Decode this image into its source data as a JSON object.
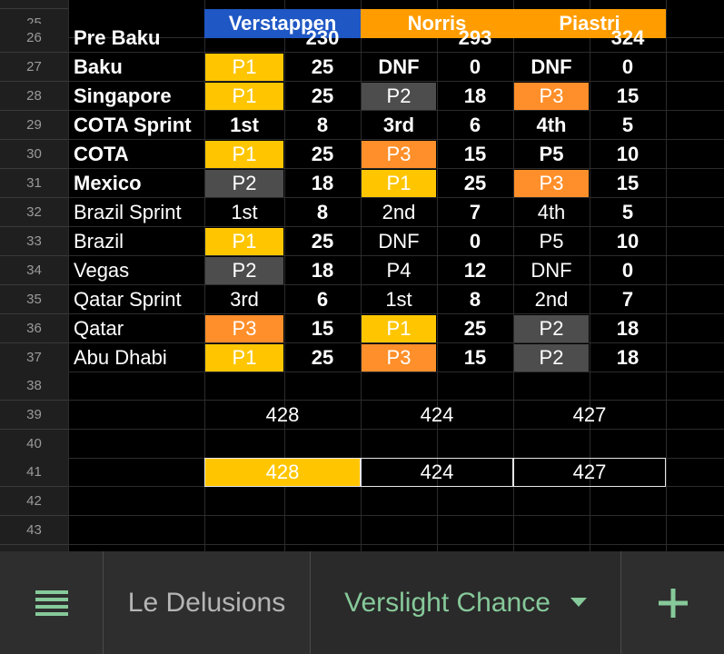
{
  "sheet": {
    "start_row": 25,
    "header": [
      "",
      "Verstappen",
      "Norris",
      "Piastri"
    ],
    "rows": [
      {
        "label": "Pre Baku",
        "bold": true,
        "cells": [
          [
            "",
            "230"
          ],
          [
            "",
            "293"
          ],
          [
            "",
            "324"
          ]
        ]
      },
      {
        "label": "Baku",
        "bold": true,
        "cells": [
          [
            "P1",
            "25"
          ],
          [
            "DNF",
            "0"
          ],
          [
            "DNF",
            "0"
          ]
        ]
      },
      {
        "label": "Singapore",
        "bold": true,
        "cells": [
          [
            "P1",
            "25"
          ],
          [
            "P2",
            "18"
          ],
          [
            "P3",
            "15"
          ]
        ]
      },
      {
        "label": "COTA Sprint",
        "bold": true,
        "cells": [
          [
            "1st",
            "8"
          ],
          [
            "3rd",
            "6"
          ],
          [
            "4th",
            "5"
          ]
        ]
      },
      {
        "label": "COTA",
        "bold": true,
        "cells": [
          [
            "P1",
            "25"
          ],
          [
            "P3",
            "15"
          ],
          [
            "P5",
            "10"
          ]
        ]
      },
      {
        "label": "Mexico",
        "bold": true,
        "cells": [
          [
            "P2",
            "18"
          ],
          [
            "P1",
            "25"
          ],
          [
            "P3",
            "15"
          ]
        ]
      },
      {
        "label": "Brazil Sprint",
        "bold": false,
        "cells": [
          [
            "1st",
            "8"
          ],
          [
            "2nd",
            "7"
          ],
          [
            "4th",
            "5"
          ]
        ]
      },
      {
        "label": "Brazil",
        "bold": false,
        "cells": [
          [
            "P1",
            "25"
          ],
          [
            "DNF",
            "0"
          ],
          [
            "P5",
            "10"
          ]
        ]
      },
      {
        "label": "Vegas",
        "bold": false,
        "cells": [
          [
            "P2",
            "18"
          ],
          [
            "P4",
            "12"
          ],
          [
            "DNF",
            "0"
          ]
        ]
      },
      {
        "label": "Qatar Sprint",
        "bold": false,
        "cells": [
          [
            "3rd",
            "6"
          ],
          [
            "1st",
            "8"
          ],
          [
            "2nd",
            "7"
          ]
        ]
      },
      {
        "label": "Qatar",
        "bold": false,
        "cells": [
          [
            "P3",
            "15"
          ],
          [
            "P1",
            "25"
          ],
          [
            "P2",
            "18"
          ]
        ]
      },
      {
        "label": "Abu Dhabi",
        "bold": false,
        "cells": [
          [
            "P1",
            "25"
          ],
          [
            "P3",
            "15"
          ],
          [
            "P2",
            "18"
          ]
        ]
      }
    ],
    "totals_row39": [
      "428",
      "424",
      "427"
    ],
    "totals_row41": [
      "428",
      "424",
      "427"
    ]
  },
  "colors": {
    "verstappen_header": "#1f57c4",
    "norris_header": "#ff9d00",
    "piastri_header": "#ff9d00",
    "p1": "#ffc600",
    "p2": "#4d4d4d",
    "p3": "#ff8f2a",
    "accent_green": "#86c99a"
  },
  "tabs": {
    "menu_icon": "list-icon",
    "sheet1": "Le Delusions",
    "sheet2": "Verslight Chance",
    "dropdown_icon": "triangle-down-icon",
    "add_icon": "plus-icon"
  }
}
